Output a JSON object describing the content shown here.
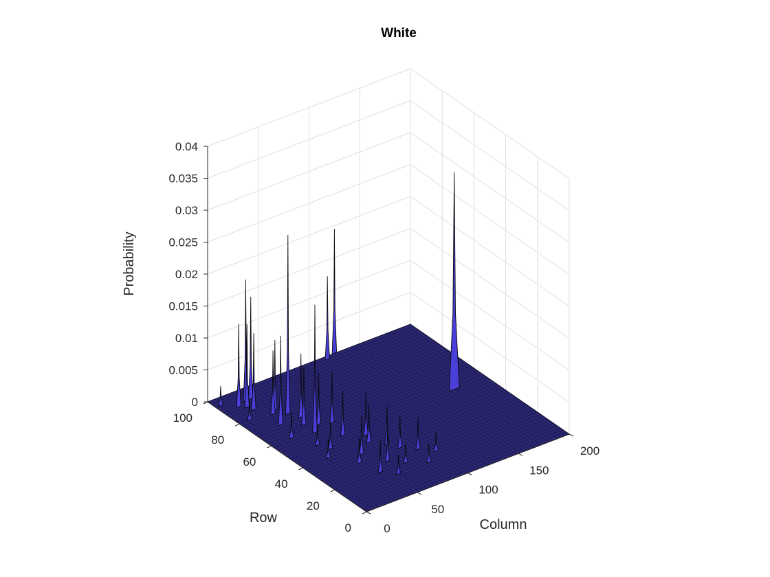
{
  "chart_data": {
    "type": "surface",
    "title": "White",
    "xlabel": "Column",
    "ylabel": "Row",
    "zlabel": "Probability",
    "xlim": [
      0,
      200
    ],
    "ylim": [
      0,
      100
    ],
    "zlim": [
      0,
      0.04
    ],
    "x_ticks": [
      "0",
      "50",
      "100",
      "150",
      "200"
    ],
    "y_ticks": [
      "0",
      "20",
      "40",
      "60",
      "80",
      "100"
    ],
    "z_ticks": [
      "0",
      "0.005",
      "0.01",
      "0.015",
      "0.02",
      "0.025",
      "0.03",
      "0.035",
      "0.04"
    ],
    "grid": true,
    "colors": {
      "face": "#4a3fd8",
      "edge": "#0a0a0a",
      "highlight": "#26c6d8"
    },
    "peaks": [
      {
        "column": 168,
        "row": 52,
        "value": 0.034
      },
      {
        "column": 40,
        "row": 75,
        "value": 0.028
      },
      {
        "column": 40,
        "row": 58,
        "value": 0.02
      },
      {
        "column": 25,
        "row": 92,
        "value": 0.019
      },
      {
        "column": 30,
        "row": 92,
        "value": 0.016
      },
      {
        "column": 25,
        "row": 70,
        "value": 0.014
      },
      {
        "column": 15,
        "row": 90,
        "value": 0.013
      },
      {
        "column": 20,
        "row": 88,
        "value": 0.013
      },
      {
        "column": 22,
        "row": 85,
        "value": 0.012
      },
      {
        "column": 35,
        "row": 80,
        "value": 0.011
      },
      {
        "column": 30,
        "row": 78,
        "value": 0.01
      },
      {
        "column": 45,
        "row": 70,
        "value": 0.01
      },
      {
        "column": 40,
        "row": 65,
        "value": 0.009
      },
      {
        "column": 60,
        "row": 60,
        "value": 0.008
      },
      {
        "column": 50,
        "row": 62,
        "value": 0.008
      },
      {
        "column": 55,
        "row": 50,
        "value": 0.007
      },
      {
        "column": 70,
        "row": 45,
        "value": 0.007
      },
      {
        "column": 65,
        "row": 40,
        "value": 0.006
      },
      {
        "column": 75,
        "row": 35,
        "value": 0.006
      },
      {
        "column": 80,
        "row": 30,
        "value": 0.005
      },
      {
        "column": 50,
        "row": 35,
        "value": 0.006
      },
      {
        "column": 60,
        "row": 25,
        "value": 0.005
      },
      {
        "column": 45,
        "row": 20,
        "value": 0.005
      },
      {
        "column": 90,
        "row": 25,
        "value": 0.005
      },
      {
        "column": 20,
        "row": 60,
        "value": 0.004
      },
      {
        "column": 5,
        "row": 95,
        "value": 0.003
      },
      {
        "column": 10,
        "row": 80,
        "value": 0.003
      },
      {
        "column": 35,
        "row": 45,
        "value": 0.004
      },
      {
        "column": 40,
        "row": 30,
        "value": 0.004
      },
      {
        "column": 100,
        "row": 20,
        "value": 0.003
      },
      {
        "column": 85,
        "row": 15,
        "value": 0.003
      },
      {
        "column": 70,
        "row": 20,
        "value": 0.003
      },
      {
        "column": 25,
        "row": 40,
        "value": 0.003
      },
      {
        "column": 30,
        "row": 50,
        "value": 0.003
      },
      {
        "column": 55,
        "row": 15,
        "value": 0.003
      },
      {
        "column": 115,
        "row": 98,
        "value": 0.013
      },
      {
        "column": 125,
        "row": 100,
        "value": 0.0195
      }
    ]
  }
}
